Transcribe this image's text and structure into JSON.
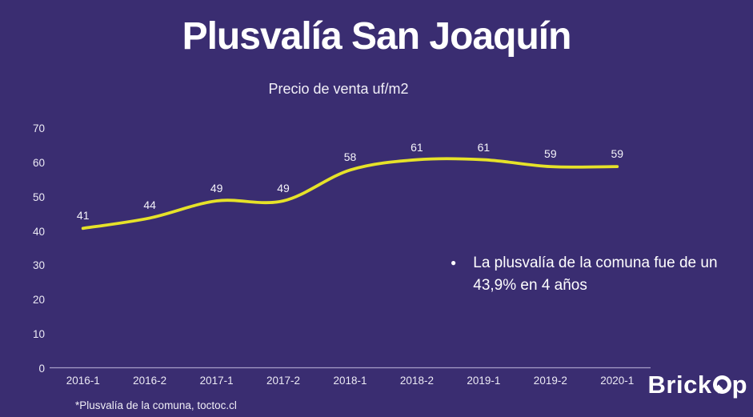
{
  "header": {
    "title": "Plusvalía San Joaquín",
    "subtitle": "Precio de venta uf/m2"
  },
  "chart_data": {
    "type": "line",
    "title": "Precio de venta uf/m2",
    "categories": [
      "2016-1",
      "2016-2",
      "2017-1",
      "2017-2",
      "2018-1",
      "2018-2",
      "2019-1",
      "2019-2",
      "2020-1"
    ],
    "values": [
      41,
      44,
      49,
      49,
      58,
      61,
      61,
      59,
      59
    ],
    "yticks": [
      0,
      10,
      20,
      30,
      40,
      50,
      60,
      70
    ],
    "ylim": [
      0,
      70
    ],
    "xlabel": "",
    "ylabel": "",
    "grid": false,
    "legend_position": "none",
    "data_labels": true,
    "smooth": true
  },
  "annotation": {
    "bullet": "●",
    "text": "La plusvalía de la comuna fue de un 43,9% en 4 años"
  },
  "footnote": {
    "text": "*Plusvalía de la comuna, toctoc.cl"
  },
  "logo": {
    "brand": "BrickOp",
    "part_left": "Brick",
    "part_right": "p"
  },
  "colors": {
    "background": "#3a2d71",
    "line": "#e6e229",
    "axis_line": "#a89fc9",
    "text": "#ffffff"
  }
}
